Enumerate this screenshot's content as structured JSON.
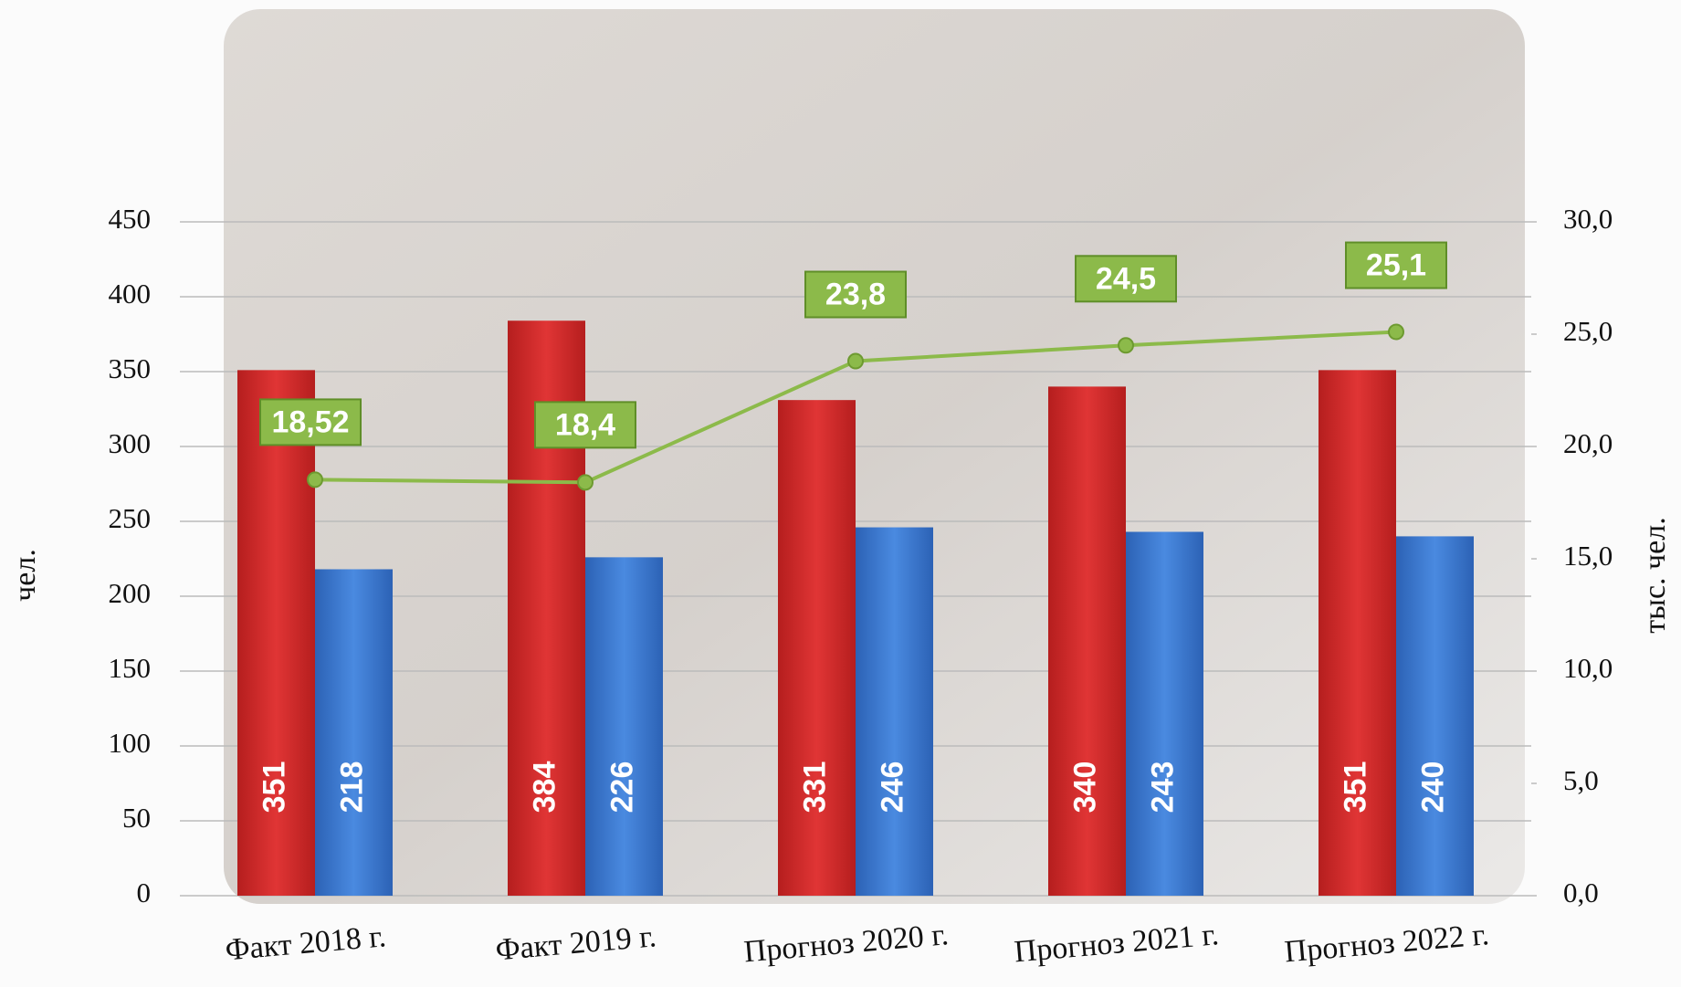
{
  "chart_data": {
    "type": "bar",
    "y_label": "чел.",
    "y2_label": "тыс. чел.",
    "categories": [
      "Факт 2018 г.",
      "Факт 2019 г.",
      "Прогноз 2020 г.",
      "Прогноз 2021 г.",
      "Прогноз 2022 г."
    ],
    "series": [
      {
        "color": "#d22b2b",
        "values": [
          351,
          384,
          331,
          340,
          351
        ]
      },
      {
        "color": "#3b78d0",
        "values": [
          218,
          226,
          246,
          243,
          240
        ]
      },
      {
        "type": "line",
        "axis": "y2",
        "color": "#8cba4a",
        "values": [
          18.52,
          18.4,
          23.8,
          24.5,
          25.1
        ],
        "value_labels": [
          "18,52",
          "18,4",
          "23,8",
          "24,5",
          "25,1"
        ]
      }
    ],
    "ylim": [
      0,
      450
    ],
    "yticks": [
      0,
      50,
      100,
      150,
      200,
      250,
      300,
      350,
      400,
      450
    ],
    "y2lim": [
      0,
      30
    ],
    "y2ticks": [
      {
        "value": 0,
        "label": "0,0"
      },
      {
        "value": 5,
        "label": "5,0"
      },
      {
        "value": 10,
        "label": "10,0"
      },
      {
        "value": 15,
        "label": "15,0"
      },
      {
        "value": 20,
        "label": "20,0"
      },
      {
        "value": 25,
        "label": "25,0"
      },
      {
        "value": 30,
        "label": "30,0"
      }
    ],
    "grid": true
  }
}
